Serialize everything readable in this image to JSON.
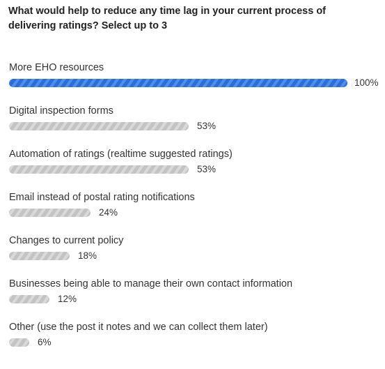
{
  "question": "What would help to reduce any time lag in your current process of delivering ratings? Select up to 3",
  "colors": {
    "top_bar": "#2b6fd6",
    "other_bars": "#c6c6c6"
  },
  "chart_data": {
    "type": "bar",
    "orientation": "horizontal",
    "title": "What would help to reduce any time lag in your current process of delivering ratings? Select up to 3",
    "categories": [
      "More EHO resources",
      "Digital inspection forms",
      "Automation of ratings (realtime suggested ratings)",
      "Email instead of postal rating notifications",
      "Changes to current policy",
      "Businesses being able to manage their own contact information",
      "Other (use the post it notes and we can collect them later)"
    ],
    "values": [
      100,
      53,
      53,
      24,
      18,
      12,
      6
    ],
    "value_labels": [
      "100%",
      "53%",
      "53%",
      "24%",
      "18%",
      "12%",
      "6%"
    ],
    "xlim": [
      0,
      100
    ],
    "grid": false
  }
}
